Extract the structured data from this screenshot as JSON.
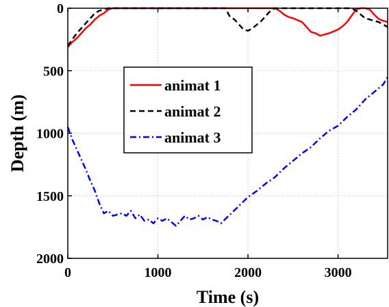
{
  "chart_data": {
    "type": "line",
    "xlabel": "Time (s)",
    "ylabel": "Depth (m)",
    "xlim": [
      0,
      3550
    ],
    "ylim": [
      0,
      2000
    ],
    "y_inverted": true,
    "grid": true,
    "legend_position": "center-left",
    "xticks": [
      0,
      1000,
      2000,
      3000
    ],
    "yticks": [
      0,
      500,
      1000,
      1500,
      2000
    ],
    "series": [
      {
        "name": "animat 1",
        "color": "#ff0000",
        "style": "solid",
        "x": [
          0,
          50,
          100,
          150,
          200,
          250,
          300,
          350,
          400,
          450,
          500,
          1000,
          1500,
          2000,
          2300,
          2350,
          2400,
          2450,
          2500,
          2600,
          2700,
          2750,
          2800,
          2850,
          2900,
          2950,
          3000,
          3050,
          3100,
          3150,
          3200,
          3250,
          3300,
          3350,
          3400,
          3450,
          3500,
          3550
        ],
        "y": [
          310,
          270,
          240,
          200,
          160,
          130,
          90,
          60,
          40,
          10,
          0,
          0,
          0,
          0,
          0,
          20,
          50,
          70,
          80,
          110,
          190,
          200,
          220,
          210,
          200,
          185,
          170,
          145,
          110,
          60,
          10,
          0,
          0,
          10,
          50,
          85,
          100,
          110
        ]
      },
      {
        "name": "animat 2",
        "color": "#000000",
        "style": "dashed",
        "x": [
          0,
          50,
          100,
          150,
          200,
          250,
          300,
          350,
          400,
          450,
          500,
          1000,
          1500,
          1750,
          1800,
          1850,
          1900,
          1950,
          2000,
          2050,
          2100,
          2150,
          2200,
          2250,
          2300,
          2500,
          3000,
          3150,
          3200,
          3250,
          3300,
          3350,
          3400,
          3450,
          3500,
          3550
        ],
        "y": [
          300,
          250,
          200,
          160,
          120,
          80,
          40,
          20,
          10,
          0,
          0,
          0,
          0,
          0,
          70,
          90,
          130,
          170,
          180,
          160,
          130,
          100,
          60,
          20,
          0,
          0,
          0,
          0,
          20,
          50,
          80,
          90,
          100,
          110,
          130,
          150
        ]
      },
      {
        "name": "animat 3",
        "color": "#0000ff",
        "style": "dashdot",
        "x": [
          0,
          50,
          100,
          150,
          200,
          250,
          300,
          350,
          400,
          450,
          500,
          550,
          600,
          650,
          700,
          750,
          800,
          850,
          900,
          950,
          1000,
          1050,
          1100,
          1150,
          1200,
          1250,
          1300,
          1350,
          1400,
          1450,
          1500,
          1550,
          1600,
          1650,
          1700,
          1800,
          1900,
          2000,
          2100,
          2200,
          2300,
          2400,
          2500,
          2600,
          2700,
          2800,
          2900,
          3000,
          3100,
          3200,
          3300,
          3400,
          3500,
          3550
        ],
        "y": [
          950,
          1050,
          1130,
          1210,
          1290,
          1380,
          1460,
          1560,
          1640,
          1620,
          1660,
          1650,
          1640,
          1660,
          1620,
          1680,
          1650,
          1700,
          1690,
          1720,
          1680,
          1700,
          1680,
          1710,
          1740,
          1700,
          1660,
          1690,
          1680,
          1660,
          1690,
          1670,
          1690,
          1700,
          1720,
          1650,
          1580,
          1510,
          1460,
          1400,
          1350,
          1280,
          1220,
          1160,
          1110,
          1040,
          980,
          940,
          870,
          810,
          730,
          670,
          610,
          550
        ]
      }
    ]
  }
}
